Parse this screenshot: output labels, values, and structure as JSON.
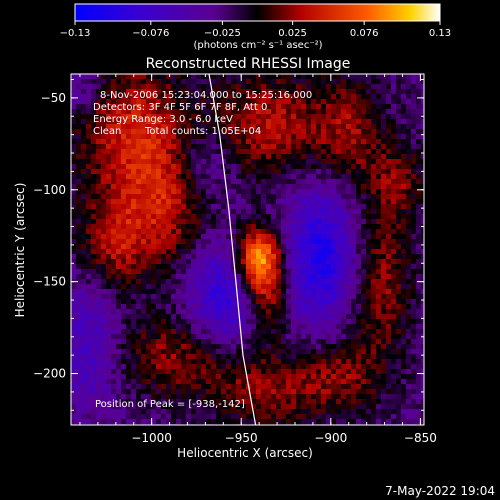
{
  "chart_data": {
    "type": "heatmap",
    "title": "Reconstructed RHESSI Image",
    "xlabel": "Heliocentric X (arcsec)",
    "ylabel": "Heliocentric Y (arcsec)",
    "xlim": [
      -1045,
      -848
    ],
    "ylim": [
      -228,
      -37
    ],
    "x_ticks": [
      -1000,
      -950,
      -900,
      -850
    ],
    "x_tick_labels": [
      "−1000",
      "−950",
      "−900",
      "−850"
    ],
    "y_ticks": [
      -50,
      -100,
      -150,
      -200
    ],
    "y_tick_labels": [
      "−50",
      "−100",
      "−150",
      "−200"
    ],
    "colorbar": {
      "range": [
        -0.13,
        0.13
      ],
      "ticks": [
        -0.13,
        -0.076,
        -0.025,
        0.025,
        0.076,
        0.13
      ],
      "tick_labels": [
        "−0.13",
        "−0.076",
        "−0.025",
        "0.025",
        "0.076",
        "0.13"
      ],
      "units_label": "(photons cm⁻² s⁻¹ asec⁻²)"
    },
    "annotations": {
      "time": "8-Nov-2006 15:23:04.000 to 15:25:16.000",
      "detectors": "Detectors: 3F 4F 5F 6F 7F 8F, Att 0",
      "energy": "Energy Range: 3.0 - 6.0 keV",
      "clean_label": "Clean",
      "total_counts": "Total counts: 1.05E+04",
      "peak": "Position of Peak = [-938,-142]"
    },
    "peak_position": [
      -938,
      -142
    ],
    "limb_curve": [
      [
        -968,
        -37
      ],
      [
        -962,
        -70
      ],
      [
        -957,
        -110
      ],
      [
        -953,
        -150
      ],
      [
        -949,
        -190
      ],
      [
        -942,
        -228
      ]
    ],
    "sources": [
      {
        "x": -940,
        "y": -138,
        "amp": 0.13,
        "sx": 9,
        "sy": 12
      },
      {
        "x": -935,
        "y": -162,
        "amp": 0.05,
        "sx": 8,
        "sy": 12
      },
      {
        "x": -1010,
        "y": -70,
        "amp": 0.07,
        "sx": 22,
        "sy": 28
      },
      {
        "x": -990,
        "y": -110,
        "amp": 0.05,
        "sx": 16,
        "sy": 22
      },
      {
        "x": -1020,
        "y": -130,
        "amp": 0.055,
        "sx": 14,
        "sy": 18
      },
      {
        "x": -985,
        "y": -190,
        "amp": 0.05,
        "sx": 30,
        "sy": 16
      },
      {
        "x": -935,
        "y": -210,
        "amp": 0.045,
        "sx": 22,
        "sy": 14
      },
      {
        "x": -935,
        "y": -65,
        "amp": 0.06,
        "sx": 22,
        "sy": 20
      },
      {
        "x": -890,
        "y": -70,
        "amp": 0.05,
        "sx": 14,
        "sy": 22
      },
      {
        "x": -872,
        "y": -150,
        "amp": 0.05,
        "sx": 12,
        "sy": 30
      },
      {
        "x": -895,
        "y": -200,
        "amp": 0.045,
        "sx": 16,
        "sy": 14
      },
      {
        "x": -862,
        "y": -95,
        "amp": 0.04,
        "sx": 10,
        "sy": 14
      },
      {
        "x": -960,
        "y": -160,
        "amp": -0.07,
        "sx": 14,
        "sy": 22
      },
      {
        "x": -905,
        "y": -135,
        "amp": -0.08,
        "sx": 14,
        "sy": 28
      },
      {
        "x": -1035,
        "y": -185,
        "amp": -0.05,
        "sx": 14,
        "sy": 24
      },
      {
        "x": -970,
        "y": -85,
        "amp": -0.035,
        "sx": 12,
        "sy": 14
      },
      {
        "x": -1040,
        "y": -45,
        "amp": -0.03,
        "sx": 10,
        "sy": 10
      }
    ]
  },
  "footer": {
    "date": "7-May-2022 19:04"
  }
}
